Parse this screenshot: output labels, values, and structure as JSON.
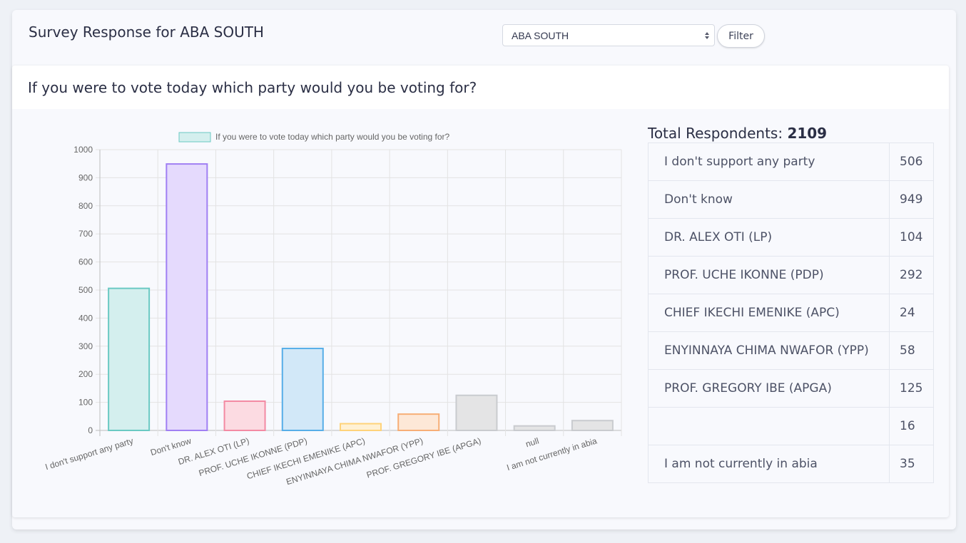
{
  "header": {
    "title": "Survey Response for ABA SOUTH",
    "select_value": "ABA SOUTH",
    "filter_label": "Filter"
  },
  "question": "If you were to vote today which party would you be voting for?",
  "summary": {
    "label": "Total Respondents:",
    "total": "2109"
  },
  "rows": [
    {
      "label": "I don't support any party",
      "count": "506"
    },
    {
      "label": "Don't know",
      "count": "949"
    },
    {
      "label": "DR. ALEX OTI (LP)",
      "count": "104"
    },
    {
      "label": "PROF. UCHE IKONNE (PDP)",
      "count": "292"
    },
    {
      "label": "CHIEF IKECHI EMENIKE (APC)",
      "count": "24"
    },
    {
      "label": "ENYINNAYA CHIMA NWAFOR (YPP)",
      "count": "58"
    },
    {
      "label": "PROF. GREGORY IBE (APGA)",
      "count": "125"
    },
    {
      "label": "",
      "count": "16"
    },
    {
      "label": "I am not currently in abia",
      "count": "35"
    }
  ],
  "chart_data": {
    "type": "bar",
    "legend": "If you were to vote today which party would you be voting for?",
    "legend_position": "top",
    "categories": [
      "I don't support any party",
      "Don't know",
      "DR. ALEX OTI (LP)",
      "PROF. UCHE IKONNE (PDP)",
      "CHIEF IKECHI EMENIKE (APC)",
      "ENYINNAYA CHIMA NWAFOR (YPP)",
      "PROF. GREGORY IBE (APGA)",
      "null",
      "I am not currently in abia"
    ],
    "values": [
      506,
      949,
      104,
      292,
      24,
      58,
      125,
      16,
      35
    ],
    "ylim": [
      0,
      1000
    ],
    "yticks": [
      0,
      100,
      200,
      300,
      400,
      500,
      600,
      700,
      800,
      900,
      1000
    ],
    "grid": true,
    "colors": {
      "fills": [
        "#d4efee",
        "#e5dafd",
        "#fcdbe2",
        "#d2e8f8",
        "#fff1d4",
        "#fde8d7",
        "#e4e4e5",
        "#e4e4e5",
        "#e4e4e5"
      ],
      "strokes": [
        "#6ac9c3",
        "#a07ff3",
        "#f38aa3",
        "#57aee8",
        "#ffd37a",
        "#f7ae76",
        "#c9cbcf",
        "#c9cbcf",
        "#c9cbcf"
      ]
    }
  }
}
